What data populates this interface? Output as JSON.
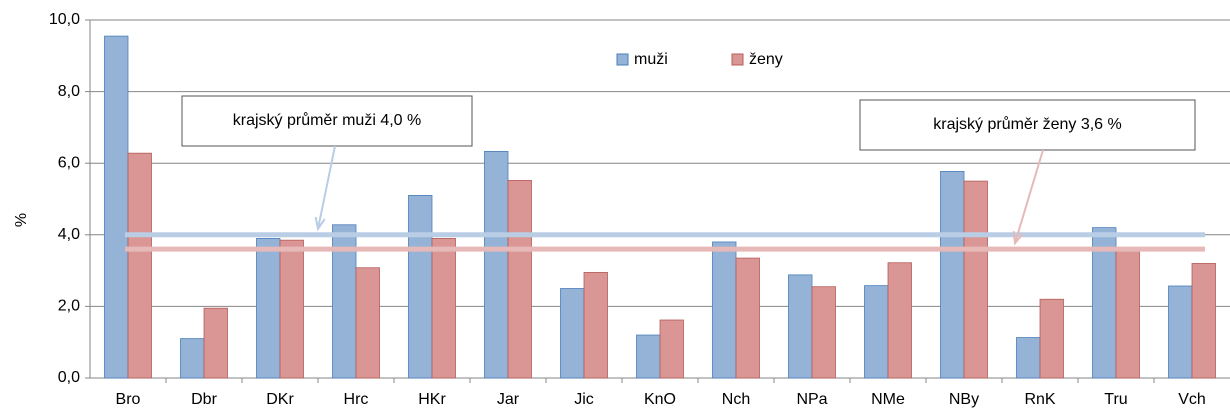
{
  "chart_data": {
    "type": "bar",
    "y_label": "%",
    "categories": [
      "Bro",
      "Dbr",
      "DKr",
      "Hrc",
      "HKr",
      "Jar",
      "Jic",
      "KnO",
      "Nch",
      "NPa",
      "NMe",
      "NBy",
      "RnK",
      "Tru",
      "Vch"
    ],
    "series": [
      {
        "name": "muži",
        "color": "#95b3d7",
        "edge": "#4a7ebb",
        "values": [
          9.55,
          1.1,
          3.9,
          4.28,
          5.1,
          6.33,
          2.5,
          1.2,
          3.8,
          2.88,
          2.58,
          5.77,
          1.13,
          4.2,
          2.57
        ]
      },
      {
        "name": "ženy",
        "color": "#d99694",
        "edge": "#b65d5a",
        "values": [
          6.28,
          1.95,
          3.85,
          3.08,
          3.9,
          5.52,
          2.95,
          1.62,
          3.35,
          2.55,
          3.22,
          5.5,
          2.2,
          3.6,
          3.2
        ]
      }
    ],
    "reference_lines": [
      {
        "value": 4.0,
        "label": "krajský průměr muži 4,0 %",
        "color": "#b9cde5"
      },
      {
        "value": 3.6,
        "label": "krajský průměr ženy 3,6 %",
        "color": "#e6b9b8"
      }
    ],
    "ylim": [
      0,
      10
    ],
    "yticks": [
      {
        "value": 0,
        "label": "0,0"
      },
      {
        "value": 2,
        "label": "2,0"
      },
      {
        "value": 4,
        "label": "4,0"
      },
      {
        "value": 6,
        "label": "6,0"
      },
      {
        "value": 8,
        "label": "8,0"
      },
      {
        "value": 10,
        "label": "10,0"
      }
    ],
    "grid": true
  }
}
